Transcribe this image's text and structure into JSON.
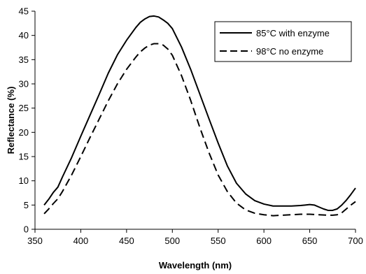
{
  "chart_data": {
    "type": "line",
    "title": "",
    "xlabel": "Wavelength (nm)",
    "ylabel": "Reflectance (%)",
    "xlim": [
      350,
      700
    ],
    "ylim": [
      0,
      45
    ],
    "x_ticks": [
      "350",
      "400",
      "450",
      "500",
      "550",
      "600",
      "650",
      "700"
    ],
    "y_ticks": [
      "0",
      "5",
      "10",
      "15",
      "20",
      "25",
      "30",
      "35",
      "40",
      "45"
    ],
    "grid": false,
    "legend_position": "top-right",
    "series": [
      {
        "name": "85°C with enzyme",
        "style": "solid",
        "color": "#000000",
        "x": [
          360,
          365,
          370,
          375,
          380,
          390,
          400,
          410,
          420,
          430,
          440,
          450,
          460,
          465,
          470,
          475,
          480,
          485,
          490,
          495,
          500,
          510,
          520,
          530,
          540,
          550,
          560,
          570,
          580,
          590,
          600,
          610,
          620,
          630,
          640,
          645,
          650,
          655,
          660,
          665,
          670,
          675,
          680,
          685,
          690,
          695,
          700
        ],
        "y": [
          5.0,
          6.2,
          7.6,
          8.7,
          10.8,
          14.8,
          19.2,
          23.5,
          27.8,
          32.2,
          36.0,
          39.0,
          41.6,
          42.7,
          43.4,
          43.9,
          44.0,
          43.8,
          43.2,
          42.5,
          41.4,
          37.6,
          33.0,
          27.9,
          22.8,
          17.8,
          13.1,
          9.5,
          7.3,
          5.9,
          5.2,
          4.8,
          4.8,
          4.8,
          4.9,
          5.0,
          5.1,
          5.0,
          4.6,
          4.2,
          3.9,
          3.9,
          4.2,
          5.0,
          6.0,
          7.2,
          8.5
        ]
      },
      {
        "name": "98°C no enzyme",
        "style": "dashed",
        "color": "#000000",
        "x": [
          360,
          365,
          370,
          375,
          380,
          390,
          400,
          410,
          420,
          430,
          440,
          450,
          460,
          465,
          470,
          475,
          480,
          485,
          490,
          495,
          500,
          510,
          520,
          530,
          540,
          550,
          560,
          570,
          580,
          590,
          600,
          610,
          620,
          630,
          640,
          650,
          660,
          670,
          675,
          680,
          685,
          690,
          695,
          700
        ],
        "y": [
          3.2,
          4.2,
          5.3,
          6.3,
          7.8,
          11.2,
          15.0,
          18.9,
          22.7,
          26.5,
          30.0,
          33.0,
          35.5,
          36.6,
          37.4,
          38.0,
          38.3,
          38.3,
          38.0,
          37.2,
          35.9,
          31.7,
          26.6,
          21.0,
          15.8,
          11.2,
          7.8,
          5.4,
          4.0,
          3.3,
          3.0,
          2.8,
          2.9,
          3.0,
          3.1,
          3.1,
          3.0,
          2.9,
          2.9,
          3.0,
          3.4,
          4.2,
          5.0,
          5.7
        ]
      }
    ]
  }
}
